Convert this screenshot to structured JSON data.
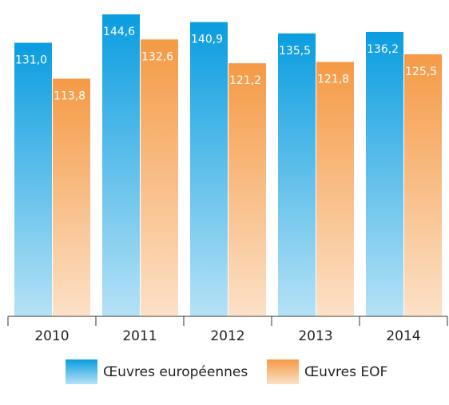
{
  "chart_data": {
    "type": "bar",
    "categories": [
      "2010",
      "2011",
      "2012",
      "2013",
      "2014"
    ],
    "series": [
      {
        "name": "Œuvres européennes",
        "color": "#0a9de0",
        "values": [
          131.0,
          144.6,
          140.9,
          135.5,
          136.2
        ],
        "value_labels": [
          "131,0",
          "144,6",
          "140,9",
          "135,5",
          "136,2"
        ]
      },
      {
        "name": "Œuvres EOF",
        "color": "#f59a45",
        "values": [
          113.8,
          132.6,
          121.2,
          121.8,
          125.5
        ],
        "value_labels": [
          "113,8",
          "132,6",
          "121,2",
          "121,8",
          "125,5"
        ]
      }
    ]
  }
}
